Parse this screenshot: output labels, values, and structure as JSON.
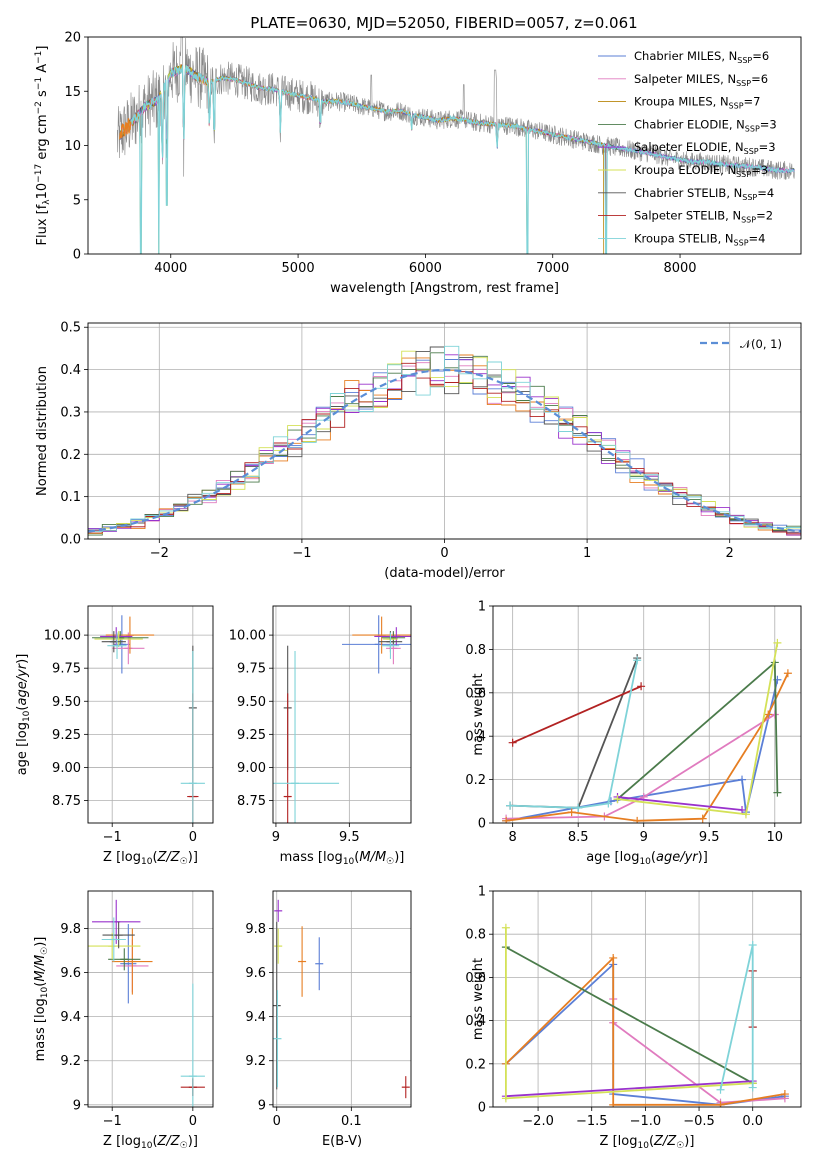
{
  "figure_title": "PLATE=0630, MJD=52050, FIBERID=0057, z=0.061",
  "colors": {
    "Chabrier MILES": "#5b7fd6",
    "Salpeter MILES": "#e07bbf",
    "Kroupa MILES": "#b8860b",
    "Chabrier ELODIE": "#4b7b4b",
    "Salpeter ELODIE": "#9932cc",
    "Kroupa ELODIE": "#d4e157",
    "Chabrier STELIB": "#555555",
    "Salpeter STELIB": "#b22222",
    "Kroupa STELIB": "#7fd3d8",
    "data": "#888888",
    "orange": "#e67e22",
    "gaussian": "#5b8ed6"
  },
  "chart_data": [
    {
      "id": "spectrum",
      "type": "line",
      "xlabel": "wavelength [Angstrom, rest frame]",
      "ylabel": "Flux [f_λ10^-17 erg cm^-2 s^-1 A^-1]",
      "xlim": [
        3350,
        8950
      ],
      "ylim": [
        0,
        20
      ],
      "xticks": [
        4000,
        5000,
        6000,
        7000,
        8000
      ],
      "yticks": [
        0,
        5,
        10,
        15,
        20
      ],
      "grid": false,
      "legend_position": "upper right",
      "legend": [
        {
          "name": "Chabrier MILES",
          "nssp": "6"
        },
        {
          "name": "Salpeter MILES",
          "nssp": "6"
        },
        {
          "name": "Kroupa MILES",
          "nssp": "7"
        },
        {
          "name": "Chabrier ELODIE",
          "nssp": "3"
        },
        {
          "name": "Salpeter ELODIE",
          "nssp": "3"
        },
        {
          "name": "Kroupa ELODIE",
          "nssp": "3"
        },
        {
          "name": "Chabrier STELIB",
          "nssp": "4"
        },
        {
          "name": "Salpeter STELIB",
          "nssp": "2"
        },
        {
          "name": "Kroupa STELIB",
          "nssp": "4"
        }
      ],
      "continuum": [
        [
          3580,
          10.5
        ],
        [
          3620,
          11.2
        ],
        [
          3700,
          12.2
        ],
        [
          3800,
          13.6
        ],
        [
          3900,
          14.2
        ],
        [
          4000,
          16.6
        ],
        [
          4100,
          17.2
        ],
        [
          4200,
          16.4
        ],
        [
          4300,
          15.8
        ],
        [
          4400,
          16.2
        ],
        [
          4500,
          16.1
        ],
        [
          4600,
          15.7
        ],
        [
          4700,
          15.3
        ],
        [
          4800,
          15.2
        ],
        [
          4900,
          14.9
        ],
        [
          5000,
          14.6
        ],
        [
          5100,
          14.4
        ],
        [
          5200,
          14.0
        ],
        [
          5300,
          14.1
        ],
        [
          5400,
          13.9
        ],
        [
          5500,
          13.6
        ],
        [
          5600,
          13.4
        ],
        [
          5700,
          13.1
        ],
        [
          5800,
          13.2
        ],
        [
          5900,
          12.8
        ],
        [
          6000,
          12.6
        ],
        [
          6100,
          12.3
        ],
        [
          6200,
          12.5
        ],
        [
          6300,
          12.4
        ],
        [
          6400,
          12.1
        ],
        [
          6500,
          12.0
        ],
        [
          6600,
          11.9
        ],
        [
          6700,
          11.8
        ],
        [
          6800,
          11.5
        ],
        [
          6900,
          11.3
        ],
        [
          7000,
          11.0
        ],
        [
          7100,
          10.8
        ],
        [
          7200,
          10.5
        ],
        [
          7300,
          10.3
        ],
        [
          7400,
          10.0
        ],
        [
          7500,
          9.8
        ],
        [
          7600,
          9.6
        ],
        [
          7700,
          9.4
        ],
        [
          7800,
          9.2
        ],
        [
          7900,
          8.9
        ],
        [
          8000,
          8.7
        ],
        [
          8100,
          8.5
        ],
        [
          8200,
          8.5
        ],
        [
          8300,
          8.3
        ],
        [
          8400,
          8.2
        ],
        [
          8500,
          8.1
        ],
        [
          8600,
          8.0
        ],
        [
          8700,
          7.8
        ],
        [
          8800,
          7.7
        ],
        [
          8900,
          7.7
        ]
      ],
      "absorption_lines": [
        [
          3934,
          6.5
        ],
        [
          3969,
          7.0
        ],
        [
          4102,
          8.0
        ],
        [
          4304,
          10.2
        ],
        [
          4341,
          8.5
        ],
        [
          4861,
          10.4
        ],
        [
          5175,
          10.8
        ],
        [
          5892,
          11.4
        ],
        [
          6563,
          9.4
        ]
      ],
      "model_dips": [
        [
          3765,
          0
        ],
        [
          3905,
          0
        ],
        [
          3970,
          4.5
        ],
        [
          6800,
          0
        ],
        [
          7420,
          0
        ]
      ],
      "model_end": [
        {
          "name": "Salpeter STELIB",
          "end": 7420
        },
        {
          "name": "Kroupa MILES",
          "end": 7400
        },
        {
          "name": "Kroupa ELODIE",
          "end": 6800
        }
      ]
    },
    {
      "id": "residuals",
      "type": "line",
      "xlabel": "(data-model)/error",
      "ylabel": "Normed distribution",
      "xlim": [
        -2.5,
        2.5
      ],
      "ylim": [
        0,
        0.51
      ],
      "xticks": [
        -2,
        -1,
        0,
        1,
        2
      ],
      "yticks": [
        0.0,
        0.1,
        0.2,
        0.3,
        0.4,
        0.5
      ],
      "grid": true,
      "legend_position": "upper right",
      "gaussian_label": "𝒩(0, 1)",
      "bin_width": 0.1,
      "hist_series": [
        "Chabrier MILES",
        "Salpeter MILES",
        "orange",
        "Chabrier ELODIE",
        "Salpeter ELODIE",
        "Kroupa ELODIE",
        "Chabrier STELIB",
        "Salpeter STELIB",
        "Kroupa STELIB"
      ]
    },
    {
      "id": "age-vs-Z",
      "type": "scatter",
      "xlabel": "Z [log10(Z/Z☉)]",
      "ylabel": "age [log10(age/yr)]",
      "xlim": [
        -1.3,
        0.25
      ],
      "ylim": [
        8.58,
        10.22
      ],
      "xticks": [
        -1,
        0
      ],
      "yticks": [
        8.75,
        9.0,
        9.25,
        9.5,
        9.75,
        10.0
      ],
      "ytick_labels": [
        "8.75",
        "9.00",
        "9.25",
        "9.50",
        "9.75",
        "10.00"
      ],
      "grid": true,
      "points": [
        {
          "s": "Chabrier MILES",
          "x": -0.88,
          "xe": 0.1,
          "y": 9.93,
          "ye": 0.22
        },
        {
          "s": "Salpeter MILES",
          "x": -0.8,
          "xe": 0.2,
          "y": 9.9,
          "ye": 0.12
        },
        {
          "s": "orange",
          "x": -0.78,
          "xe": 0.3,
          "y": 10.0,
          "ye": 0.14
        },
        {
          "s": "Chabrier ELODIE",
          "x": -0.9,
          "xe": 0.35,
          "y": 9.98,
          "ye": 0.05
        },
        {
          "s": "Salpeter ELODIE",
          "x": -0.95,
          "xe": 0.2,
          "y": 9.99,
          "ye": 0.07
        },
        {
          "s": "Kroupa ELODIE",
          "x": -0.92,
          "xe": 0.3,
          "y": 9.97,
          "ye": 0.06
        },
        {
          "s": "Chabrier STELIB",
          "x": -0.98,
          "xe": 0.15,
          "y": 9.95,
          "ye": 0.08
        },
        {
          "s": "Kroupa STELIB",
          "x": -0.94,
          "xe": 0.12,
          "y": 9.92,
          "ye": 0.1
        },
        {
          "s": "Chabrier STELIB",
          "x": 0.0,
          "xe": 0.0,
          "y": 9.45,
          "ye": 0.47
        },
        {
          "s": "Salpeter STELIB",
          "x": 0.0,
          "xe": 0.07,
          "y": 8.78,
          "ye": 0.78
        },
        {
          "s": "Kroupa STELIB",
          "x": 0.0,
          "xe": 0.15,
          "y": 8.88,
          "ye": 1.0
        }
      ]
    },
    {
      "id": "age-vs-mass",
      "type": "scatter",
      "xlabel": "mass [log10(M/M☉)]",
      "ylabel": "",
      "xlim": [
        8.98,
        9.92
      ],
      "ylim": [
        8.58,
        10.22
      ],
      "xticks": [
        9.0,
        9.5
      ],
      "yticks": [
        8.75,
        9.0,
        9.25,
        9.5,
        9.75,
        10.0
      ],
      "ytick_labels": [
        "8.75",
        "9.00",
        "9.25",
        "9.50",
        "9.75",
        "10.00"
      ],
      "grid": true,
      "points": [
        {
          "s": "Chabrier MILES",
          "x": 9.7,
          "xe": 0.25,
          "y": 9.93,
          "ye": 0.22
        },
        {
          "s": "Salpeter MILES",
          "x": 9.8,
          "xe": 0.05,
          "y": 9.9,
          "ye": 0.12
        },
        {
          "s": "orange",
          "x": 9.72,
          "xe": 0.2,
          "y": 10.0,
          "ye": 0.14
        },
        {
          "s": "Chabrier ELODIE",
          "x": 9.8,
          "xe": 0.08,
          "y": 9.98,
          "ye": 0.05
        },
        {
          "s": "Salpeter ELODIE",
          "x": 9.82,
          "xe": 0.15,
          "y": 9.99,
          "ye": 0.07
        },
        {
          "s": "Kroupa ELODIE",
          "x": 9.78,
          "xe": 0.05,
          "y": 9.97,
          "ye": 0.06
        },
        {
          "s": "Chabrier STELIB",
          "x": 9.78,
          "xe": 0.08,
          "y": 9.95,
          "ye": 0.08
        },
        {
          "s": "Kroupa STELIB",
          "x": 9.78,
          "xe": 0.06,
          "y": 9.92,
          "ye": 0.1
        },
        {
          "s": "Chabrier STELIB",
          "x": 9.08,
          "xe": 0.0,
          "y": 9.45,
          "ye": 0.47
        },
        {
          "s": "Salpeter STELIB",
          "x": 9.08,
          "xe": 0.02,
          "y": 8.78,
          "ye": 0.78
        },
        {
          "s": "Kroupa STELIB",
          "x": 9.13,
          "xe": 0.3,
          "y": 8.88,
          "ye": 1.0
        }
      ]
    },
    {
      "id": "weight-vs-age",
      "type": "line",
      "xlabel": "age [log10(age/yr)]",
      "ylabel": "mass weight",
      "xlim": [
        7.85,
        10.2
      ],
      "ylim": [
        0,
        1.0
      ],
      "xticks": [
        8.0,
        8.5,
        9.0,
        9.5,
        10.0
      ],
      "yticks": [
        0.0,
        0.2,
        0.4,
        0.6,
        0.8,
        1.0
      ],
      "grid": true,
      "series": [
        {
          "s": "Chabrier MILES",
          "x": [
            7.95,
            8.75,
            9.75,
            9.78,
            10.02
          ],
          "y": [
            0.01,
            0.1,
            0.2,
            0.05,
            0.66
          ]
        },
        {
          "s": "Salpeter MILES",
          "x": [
            7.95,
            8.7,
            9.0,
            10.0
          ],
          "y": [
            0.02,
            0.03,
            0.12,
            0.5
          ]
        },
        {
          "s": "orange",
          "x": [
            7.95,
            8.45,
            8.95,
            9.45,
            9.95,
            10.1
          ],
          "y": [
            0.01,
            0.05,
            0.01,
            0.02,
            0.5,
            0.69
          ]
        },
        {
          "s": "Chabrier ELODIE",
          "x": [
            8.8,
            10.0,
            10.02
          ],
          "y": [
            0.11,
            0.74,
            0.14
          ]
        },
        {
          "s": "Salpeter ELODIE",
          "x": [
            8.8,
            9.75
          ],
          "y": [
            0.12,
            0.06
          ]
        },
        {
          "s": "Kroupa ELODIE",
          "x": [
            8.8,
            9.78,
            10.02
          ],
          "y": [
            0.11,
            0.04,
            0.83
          ]
        },
        {
          "s": "Chabrier STELIB",
          "x": [
            7.98,
            8.5,
            8.95
          ],
          "y": [
            0.08,
            0.07,
            0.76
          ]
        },
        {
          "s": "Salpeter STELIB",
          "x": [
            8.0,
            8.98
          ],
          "y": [
            0.37,
            0.63
          ]
        },
        {
          "s": "Kroupa STELIB",
          "x": [
            7.98,
            8.5,
            8.73,
            8.95
          ],
          "y": [
            0.08,
            0.07,
            0.09,
            0.75
          ]
        }
      ]
    },
    {
      "id": "mass-vs-Z",
      "type": "scatter",
      "xlabel": "Z [log10(Z/Z☉)]",
      "ylabel": "mass [log10(M/M☉)]",
      "xlim": [
        -1.3,
        0.25
      ],
      "ylim": [
        8.99,
        9.97
      ],
      "xticks": [
        -1,
        0
      ],
      "yticks": [
        9.0,
        9.2,
        9.4,
        9.6,
        9.8
      ],
      "grid": true,
      "points": [
        {
          "s": "Chabrier MILES",
          "x": -0.8,
          "xe": 0.1,
          "y": 9.64,
          "ye": 0.18
        },
        {
          "s": "Salpeter MILES",
          "x": -0.75,
          "xe": 0.2,
          "y": 9.63,
          "ye": 0.12
        },
        {
          "s": "orange",
          "x": -0.75,
          "xe": 0.25,
          "y": 9.65,
          "ye": 0.15
        },
        {
          "s": "Chabrier ELODIE",
          "x": -0.85,
          "xe": 0.2,
          "y": 9.66,
          "ye": 0.05
        },
        {
          "s": "Salpeter ELODIE",
          "x": -0.95,
          "xe": 0.3,
          "y": 9.83,
          "ye": 0.1
        },
        {
          "s": "Kroupa ELODIE",
          "x": -1.0,
          "xe": 0.35,
          "y": 9.72,
          "ye": 0.06
        },
        {
          "s": "Chabrier STELIB",
          "x": -0.92,
          "xe": 0.2,
          "y": 9.77,
          "ye": 0.06
        },
        {
          "s": "Kroupa STELIB",
          "x": -0.98,
          "xe": 0.15,
          "y": 9.75,
          "ye": 0.1
        },
        {
          "s": "Chabrier STELIB",
          "x": 0.0,
          "xe": 0.0,
          "y": 9.08,
          "ye": 0.04
        },
        {
          "s": "Salpeter STELIB",
          "x": 0.0,
          "xe": 0.15,
          "y": 9.08,
          "ye": 0.04
        },
        {
          "s": "Kroupa STELIB",
          "x": 0.0,
          "xe": 0.15,
          "y": 9.13,
          "ye": 0.42
        }
      ]
    },
    {
      "id": "mass-vs-EBV",
      "type": "scatter",
      "xlabel": "E(B-V)",
      "ylabel": "",
      "xlim": [
        -0.005,
        0.18
      ],
      "ylim": [
        8.99,
        9.97
      ],
      "xticks": [
        0.0,
        0.1
      ],
      "yticks": [
        9.0,
        9.2,
        9.4,
        9.6,
        9.8
      ],
      "grid": true,
      "points": [
        {
          "s": "Chabrier MILES",
          "x": 0.057,
          "xe": 0,
          "y": 9.64,
          "ye": 0.12
        },
        {
          "s": "orange",
          "x": 0.034,
          "xe": 0,
          "y": 9.65,
          "ye": 0.16
        },
        {
          "s": "Salpeter ELODIE",
          "x": 0.002,
          "xe": 0,
          "y": 9.88,
          "ye": 0.05
        },
        {
          "s": "Kroupa ELODIE",
          "x": 0.002,
          "xe": 0,
          "y": 9.72,
          "ye": 0.08
        },
        {
          "s": "Chabrier STELIB",
          "x": 0.0,
          "xe": 0,
          "y": 9.45,
          "ye": 0.38
        },
        {
          "s": "Kroupa STELIB",
          "x": 0.001,
          "xe": 0,
          "y": 9.3,
          "ye": 0.22
        },
        {
          "s": "Salpeter STELIB",
          "x": 0.173,
          "xe": 0,
          "y": 9.08,
          "ye": 0.05
        }
      ]
    },
    {
      "id": "weight-vs-Z",
      "type": "line",
      "xlabel": "Z [log10(Z/Z☉)]",
      "ylabel": "mass weight",
      "xlim": [
        -2.42,
        0.45
      ],
      "ylim": [
        0,
        1.0
      ],
      "xticks": [
        -2.0,
        -1.5,
        -1.0,
        -0.5,
        0.0
      ],
      "xtick_labels": [
        "−2.0",
        "−1.5",
        "−1.0",
        "−0.5",
        "0.0"
      ],
      "yticks": [
        0.0,
        0.2,
        0.4,
        0.6,
        0.8,
        1.0
      ],
      "grid": true,
      "series": [
        {
          "s": "Chabrier MILES",
          "x": [
            -2.3,
            -1.3,
            -1.3,
            -0.3,
            0.3
          ],
          "y": [
            0.2,
            0.66,
            0.06,
            0.01,
            0.05
          ]
        },
        {
          "s": "Salpeter MILES",
          "x": [
            -1.3,
            -1.3,
            -0.3,
            0.3
          ],
          "y": [
            0.5,
            0.39,
            0.02,
            0.04
          ]
        },
        {
          "s": "orange",
          "x": [
            -2.3,
            -1.3,
            -1.3,
            -0.3,
            0.3
          ],
          "y": [
            0.2,
            0.69,
            0.01,
            0.01,
            0.06
          ]
        },
        {
          "s": "Chabrier ELODIE",
          "x": [
            -2.3,
            0.0
          ],
          "y": [
            0.74,
            0.11
          ]
        },
        {
          "s": "Salpeter ELODIE",
          "x": [
            -2.3,
            0.0
          ],
          "y": [
            0.05,
            0.12
          ]
        },
        {
          "s": "Kroupa ELODIE",
          "x": [
            -2.3,
            -2.3,
            0.0
          ],
          "y": [
            0.83,
            0.04,
            0.11
          ]
        },
        {
          "s": "Chabrier STELIB",
          "x": [
            0.0,
            0.0
          ],
          "y": [
            0.37,
            0.63
          ]
        },
        {
          "s": "Salpeter STELIB",
          "x": [
            0.0,
            0.0
          ],
          "y": [
            0.37,
            0.63
          ]
        },
        {
          "s": "Kroupa STELIB",
          "x": [
            -0.3,
            0.0,
            0.0
          ],
          "y": [
            0.08,
            0.75,
            0.09
          ]
        }
      ]
    }
  ]
}
